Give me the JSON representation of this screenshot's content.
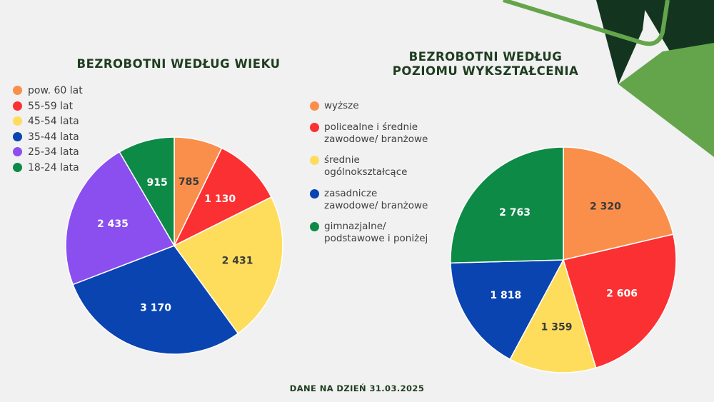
{
  "footer": "DANE NA DZIEŃ 31.03.2025",
  "colors": {
    "orange": "#fa8f4b",
    "red": "#fb3033",
    "yellow": "#fedd5c",
    "blue": "#0a44b1",
    "purple": "#8b4ff0",
    "green": "#0d8a46",
    "dark_green": "#13351f",
    "light_green": "#64a54c"
  },
  "chart_data": [
    {
      "type": "pie",
      "title": "BEZROBOTNI WEDŁUG WIEKU",
      "categories": [
        "pow. 60 lat",
        "55-59 lat",
        "45-54 lata",
        "35-44 lata",
        "25-34 lata",
        "18-24 lata"
      ],
      "values": [
        785,
        1130,
        2431,
        3170,
        2435,
        915
      ],
      "value_labels": [
        "785",
        "1 130",
        "2 431",
        "3 170",
        "2 435",
        "915"
      ],
      "colors": [
        "#fa8f4b",
        "#fb3033",
        "#fedd5c",
        "#0a44b1",
        "#8b4ff0",
        "#0d8a46"
      ],
      "legend": "top-left"
    },
    {
      "type": "pie",
      "title": "BEZROBOTNI WEDŁUG\nPOZIOMU WYKSZTAŁCENIA",
      "categories": [
        "wyższe",
        "policealne i średnie\nzawodowe/ branżowe",
        "średnie\nogólnokształcące",
        "zasadnicze\nzawodowe/ branżowe",
        "gimnazjalne/\npodstawowe i poniżej"
      ],
      "values": [
        2320,
        2606,
        1359,
        1818,
        2763
      ],
      "value_labels": [
        "2 320",
        "2 606",
        "1 359",
        "1 818",
        "2 763"
      ],
      "colors": [
        "#fa8f4b",
        "#fb3033",
        "#fedd5c",
        "#0a44b1",
        "#0d8a46"
      ],
      "legend": "left"
    }
  ]
}
